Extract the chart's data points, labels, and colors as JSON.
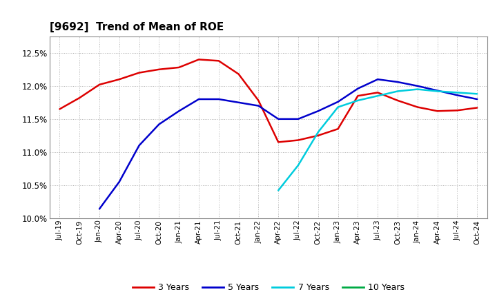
{
  "title": "[9692]  Trend of Mean of ROE",
  "ylim": [
    10.0,
    12.75
  ],
  "yticks": [
    10.0,
    10.5,
    11.0,
    11.5,
    12.0,
    12.5
  ],
  "background_color": "#ffffff",
  "plot_bg_color": "#ffffff",
  "grid_color": "#aaaaaa",
  "colors": {
    "3y": "#dd0000",
    "5y": "#0000cc",
    "7y": "#00ccdd",
    "10y": "#00aa44"
  },
  "x_labels": [
    "Jul-19",
    "Oct-19",
    "Jan-20",
    "Apr-20",
    "Jul-20",
    "Oct-20",
    "Jan-21",
    "Apr-21",
    "Jul-21",
    "Oct-21",
    "Jan-22",
    "Apr-22",
    "Jul-22",
    "Oct-22",
    "Jan-23",
    "Apr-23",
    "Jul-23",
    "Oct-23",
    "Jan-24",
    "Apr-24",
    "Jul-24",
    "Oct-24"
  ],
  "series_3y": [
    11.65,
    11.82,
    12.02,
    12.1,
    12.2,
    12.25,
    12.28,
    12.4,
    12.38,
    12.18,
    11.78,
    11.15,
    11.18,
    11.25,
    11.35,
    11.85,
    11.9,
    11.78,
    11.68,
    11.62,
    11.63,
    11.67
  ],
  "series_5y": [
    null,
    null,
    10.14,
    10.55,
    11.1,
    11.42,
    11.62,
    11.8,
    11.8,
    11.75,
    11.7,
    11.5,
    11.5,
    11.62,
    11.76,
    11.96,
    12.1,
    12.06,
    12.0,
    11.93,
    11.86,
    11.8
  ],
  "series_7y": [
    null,
    null,
    null,
    null,
    null,
    null,
    null,
    null,
    null,
    null,
    null,
    10.42,
    10.8,
    11.3,
    11.68,
    11.78,
    11.85,
    11.92,
    11.95,
    11.92,
    11.9,
    11.88
  ],
  "series_10y": [
    null,
    null,
    null,
    null,
    null,
    null,
    null,
    null,
    null,
    null,
    null,
    null,
    null,
    null,
    null,
    null,
    null,
    null,
    null,
    null,
    null,
    null
  ],
  "legend_labels": [
    "3 Years",
    "5 Years",
    "7 Years",
    "10 Years"
  ]
}
